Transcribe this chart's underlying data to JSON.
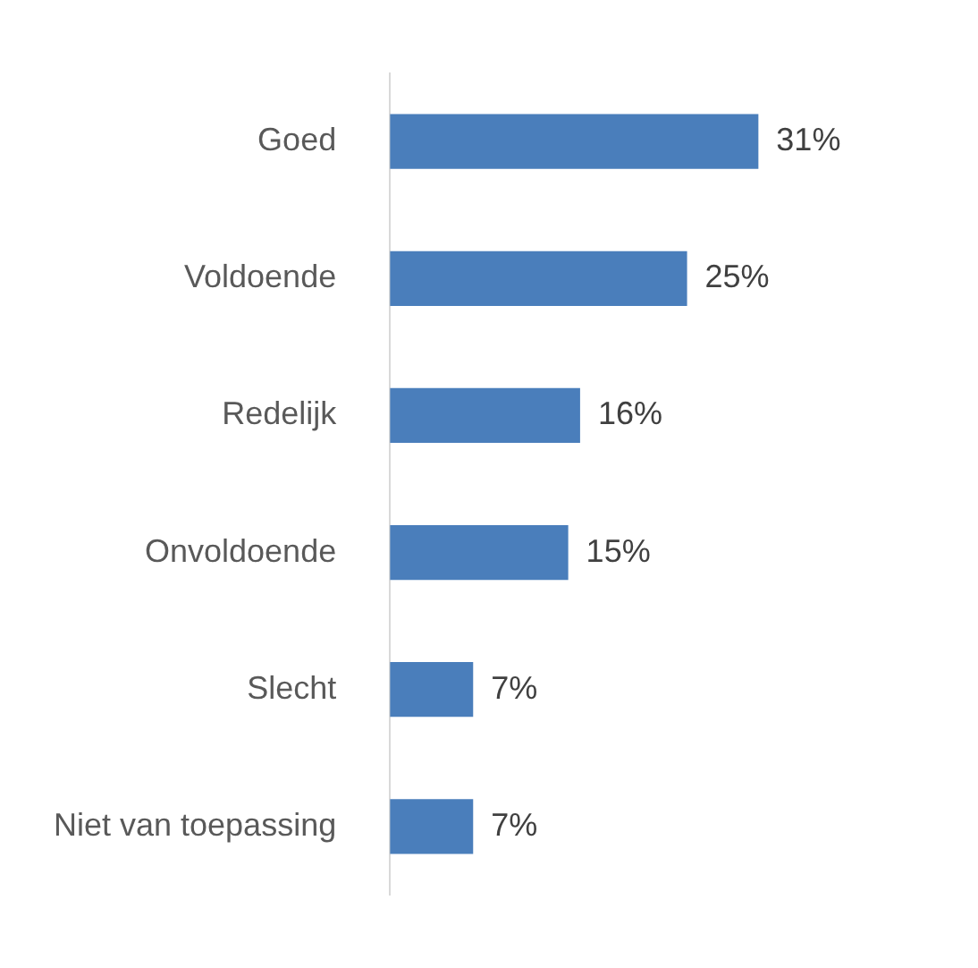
{
  "chart_data": {
    "type": "bar",
    "orientation": "horizontal",
    "categories": [
      "Goed",
      "Voldoende",
      "Redelijk",
      "Onvoldoende",
      "Slecht",
      "Niet van toepassing"
    ],
    "values": [
      31,
      25,
      16,
      15,
      7,
      7
    ],
    "value_labels": [
      "31%",
      "25%",
      "16%",
      "15%",
      "7%",
      "7%"
    ],
    "color": "#4a7ebb",
    "legend": false
  }
}
